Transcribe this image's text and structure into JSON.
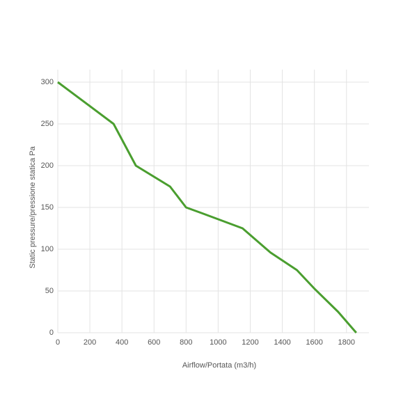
{
  "chart_data": {
    "type": "line",
    "x_label": "Airflow/Portata (m3/h)",
    "y_label": "Static pressure/pressione statica Pa",
    "x": [
      0,
      348,
      487,
      700,
      800,
      900,
      1152,
      1326,
      1491,
      1604,
      1748,
      1861
    ],
    "series": [
      {
        "color": "#4a9e2f",
        "values": [
          300,
          250,
          200,
          175,
          150,
          143,
          125,
          96,
          75,
          52,
          25,
          0
        ]
      }
    ],
    "xlim": [
      0,
      1940
    ],
    "ylim": [
      0,
      315
    ],
    "xticks": [
      0,
      200,
      400,
      600,
      800,
      1000,
      1200,
      1400,
      1600,
      1800
    ],
    "yticks": [
      0,
      50,
      100,
      150,
      200,
      250,
      300
    ],
    "grid": true
  }
}
